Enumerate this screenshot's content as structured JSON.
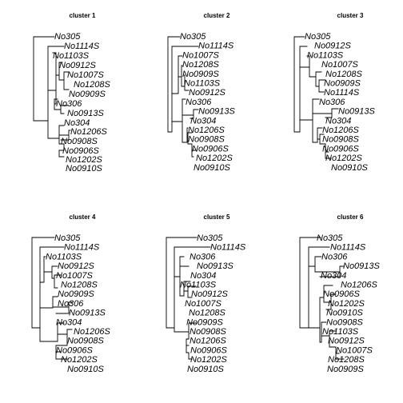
{
  "panels": [
    {
      "title": "cluster 1",
      "tips": [
        "No305",
        "No1114S",
        "No1103S",
        "No0912S",
        "No1007S",
        "No1208S",
        "No0909S",
        "No306",
        "No0913S",
        "No304",
        "No1206S",
        "No0908S",
        "No0906S",
        "No1202S",
        "No0910S"
      ]
    },
    {
      "title": "cluster 2",
      "tips": [
        "No305",
        "No1114S",
        "No1007S",
        "No1208S",
        "No0909S",
        "No1103S",
        "No0912S",
        "No306",
        "No0913S",
        "No304",
        "No1206S",
        "No0908S",
        "No0906S",
        "No1202S",
        "No0910S"
      ]
    },
    {
      "title": "cluster 3",
      "tips": [
        "No305",
        "No0912S",
        "No1103S",
        "No1007S",
        "No1208S",
        "No0909S",
        "No1114S",
        "No306",
        "No0913S",
        "No304",
        "No1206S",
        "No0908S",
        "No0906S",
        "No1202S",
        "No0910S"
      ]
    },
    {
      "title": "cluster 4",
      "tips": [
        "No305",
        "No1114S",
        "No1103S",
        "No0912S",
        "No1007S",
        "No1208S",
        "No0909S",
        "No306",
        "No0913S",
        "No304",
        "No1206S",
        "No0908S",
        "No0906S",
        "No1202S",
        "No0910S"
      ]
    },
    {
      "title": "cluster 5",
      "tips": [
        "No305",
        "No1114S",
        "No306",
        "No0913S",
        "No304",
        "No1103S",
        "No0912S",
        "No1007S",
        "No1208S",
        "No0909S",
        "No0908S",
        "No1206S",
        "No0906S",
        "No1202S",
        "No0910S"
      ]
    },
    {
      "title": "cluster 6",
      "tips": [
        "No305",
        "No1114S",
        "No306",
        "No0913S",
        "No304",
        "No1206S",
        "No0906S",
        "No1202S",
        "No0910S",
        "No0908S",
        "No1103S",
        "No0912S",
        "No1007S",
        "No1208S",
        "No0909S"
      ]
    }
  ],
  "colors": {
    "background": "#ffffff",
    "ink": "#000000"
  }
}
